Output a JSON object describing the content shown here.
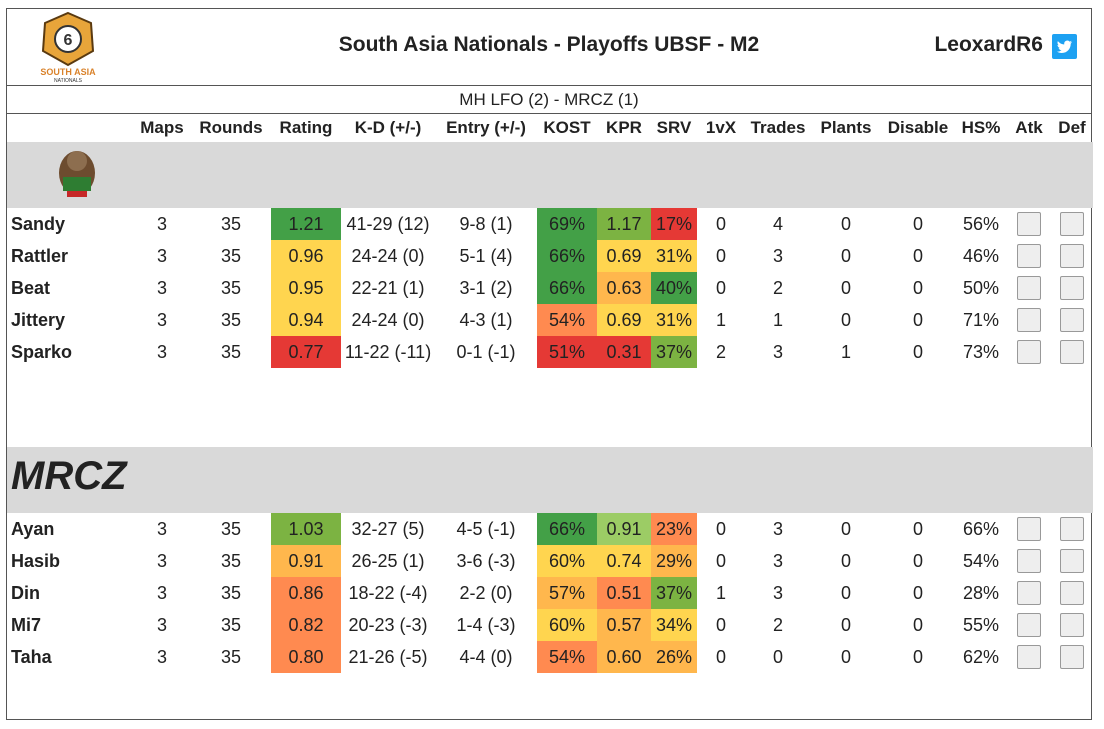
{
  "header": {
    "logo_text": "SOUTH ASIA NATIONALS",
    "title": "South Asia Nationals - Playoffs UBSF - M2",
    "handle": "LeoxardR6"
  },
  "match": "MH LFO (2) - MRCZ (1)",
  "columns": [
    "Maps",
    "Rounds",
    "Rating",
    "K-D (+/-)",
    "Entry (+/-)",
    "KOST",
    "KPR",
    "SRV",
    "1vX",
    "Trades",
    "Plants",
    "Disable",
    "HS%",
    "Atk",
    "Def"
  ],
  "team2_logo_text": "MRCZ",
  "team1": [
    {
      "name": "Sandy",
      "maps": "3",
      "rounds": "35",
      "rating": "1.21",
      "kd": "41-29 (12)",
      "entry": "9-8 (1)",
      "kost": "69%",
      "kpr": "1.17",
      "srv": "17%",
      "onevx": "0",
      "trades": "4",
      "plants": "0",
      "disable": "0",
      "hs": "56%",
      "atk_icon": "operator-icon",
      "def_icon": "operator-icon"
    },
    {
      "name": "Rattler",
      "maps": "3",
      "rounds": "35",
      "rating": "0.96",
      "kd": "24-24 (0)",
      "entry": "5-1 (4)",
      "kost": "66%",
      "kpr": "0.69",
      "srv": "31%",
      "onevx": "0",
      "trades": "3",
      "plants": "0",
      "disable": "0",
      "hs": "46%",
      "atk_icon": "operator-icon",
      "def_icon": "operator-icon"
    },
    {
      "name": "Beat",
      "maps": "3",
      "rounds": "35",
      "rating": "0.95",
      "kd": "22-21 (1)",
      "entry": "3-1 (2)",
      "kost": "66%",
      "kpr": "0.63",
      "srv": "40%",
      "onevx": "0",
      "trades": "2",
      "plants": "0",
      "disable": "0",
      "hs": "50%",
      "atk_icon": "operator-icon",
      "def_icon": "operator-icon"
    },
    {
      "name": "Jittery",
      "maps": "3",
      "rounds": "35",
      "rating": "0.94",
      "kd": "24-24 (0)",
      "entry": "4-3 (1)",
      "kost": "54%",
      "kpr": "0.69",
      "srv": "31%",
      "onevx": "1",
      "trades": "1",
      "plants": "0",
      "disable": "0",
      "hs": "71%",
      "atk_icon": "operator-icon",
      "def_icon": "operator-icon"
    },
    {
      "name": "Sparko",
      "maps": "3",
      "rounds": "35",
      "rating": "0.77",
      "kd": "11-22 (-11)",
      "entry": "0-1 (-1)",
      "kost": "51%",
      "kpr": "0.31",
      "srv": "37%",
      "onevx": "2",
      "trades": "3",
      "plants": "1",
      "disable": "0",
      "hs": "73%",
      "atk_icon": "operator-icon",
      "def_icon": "operator-icon"
    }
  ],
  "team2": [
    {
      "name": "Ayan",
      "maps": "3",
      "rounds": "35",
      "rating": "1.03",
      "kd": "32-27 (5)",
      "entry": "4-5 (-1)",
      "kost": "66%",
      "kpr": "0.91",
      "srv": "23%",
      "onevx": "0",
      "trades": "3",
      "plants": "0",
      "disable": "0",
      "hs": "66%",
      "atk_icon": "operator-icon",
      "def_icon": "operator-icon"
    },
    {
      "name": "Hasib",
      "maps": "3",
      "rounds": "35",
      "rating": "0.91",
      "kd": "26-25 (1)",
      "entry": "3-6 (-3)",
      "kost": "60%",
      "kpr": "0.74",
      "srv": "29%",
      "onevx": "0",
      "trades": "3",
      "plants": "0",
      "disable": "0",
      "hs": "54%",
      "atk_icon": "operator-icon",
      "def_icon": "operator-icon"
    },
    {
      "name": "Din",
      "maps": "3",
      "rounds": "35",
      "rating": "0.86",
      "kd": "18-22 (-4)",
      "entry": "2-2 (0)",
      "kost": "57%",
      "kpr": "0.51",
      "srv": "37%",
      "onevx": "1",
      "trades": "3",
      "plants": "0",
      "disable": "0",
      "hs": "28%",
      "atk_icon": "operator-icon",
      "def_icon": "operator-icon"
    },
    {
      "name": "Mi7",
      "maps": "3",
      "rounds": "35",
      "rating": "0.82",
      "kd": "20-23 (-3)",
      "entry": "1-4 (-3)",
      "kost": "60%",
      "kpr": "0.57",
      "srv": "34%",
      "onevx": "0",
      "trades": "2",
      "plants": "0",
      "disable": "0",
      "hs": "55%",
      "atk_icon": "operator-icon",
      "def_icon": "operator-icon"
    },
    {
      "name": "Taha",
      "maps": "3",
      "rounds": "35",
      "rating": "0.80",
      "kd": "21-26 (-5)",
      "entry": "4-4 (0)",
      "kost": "54%",
      "kpr": "0.60",
      "srv": "26%",
      "onevx": "0",
      "trades": "0",
      "plants": "0",
      "disable": "0",
      "hs": "62%",
      "atk_icon": "operator-icon",
      "def_icon": "operator-icon"
    }
  ]
}
